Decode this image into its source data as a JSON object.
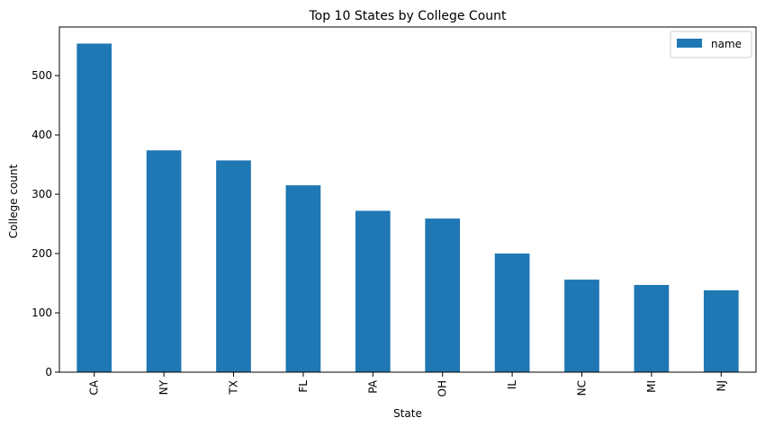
{
  "chart_data": {
    "type": "bar",
    "title": "Top 10 States by College Count",
    "xlabel": "State",
    "ylabel": "College count",
    "categories": [
      "CA",
      "NY",
      "TX",
      "FL",
      "PA",
      "OH",
      "IL",
      "NC",
      "MI",
      "NJ"
    ],
    "series": [
      {
        "name": "name",
        "values": [
          554,
          374,
          357,
          315,
          272,
          259,
          200,
          156,
          147,
          138
        ],
        "color": "#1f77b4"
      }
    ],
    "ylim": [
      0,
      582
    ],
    "yticks": [
      0,
      100,
      200,
      300,
      400,
      500
    ],
    "grid": false,
    "legend_position": "top-right"
  }
}
